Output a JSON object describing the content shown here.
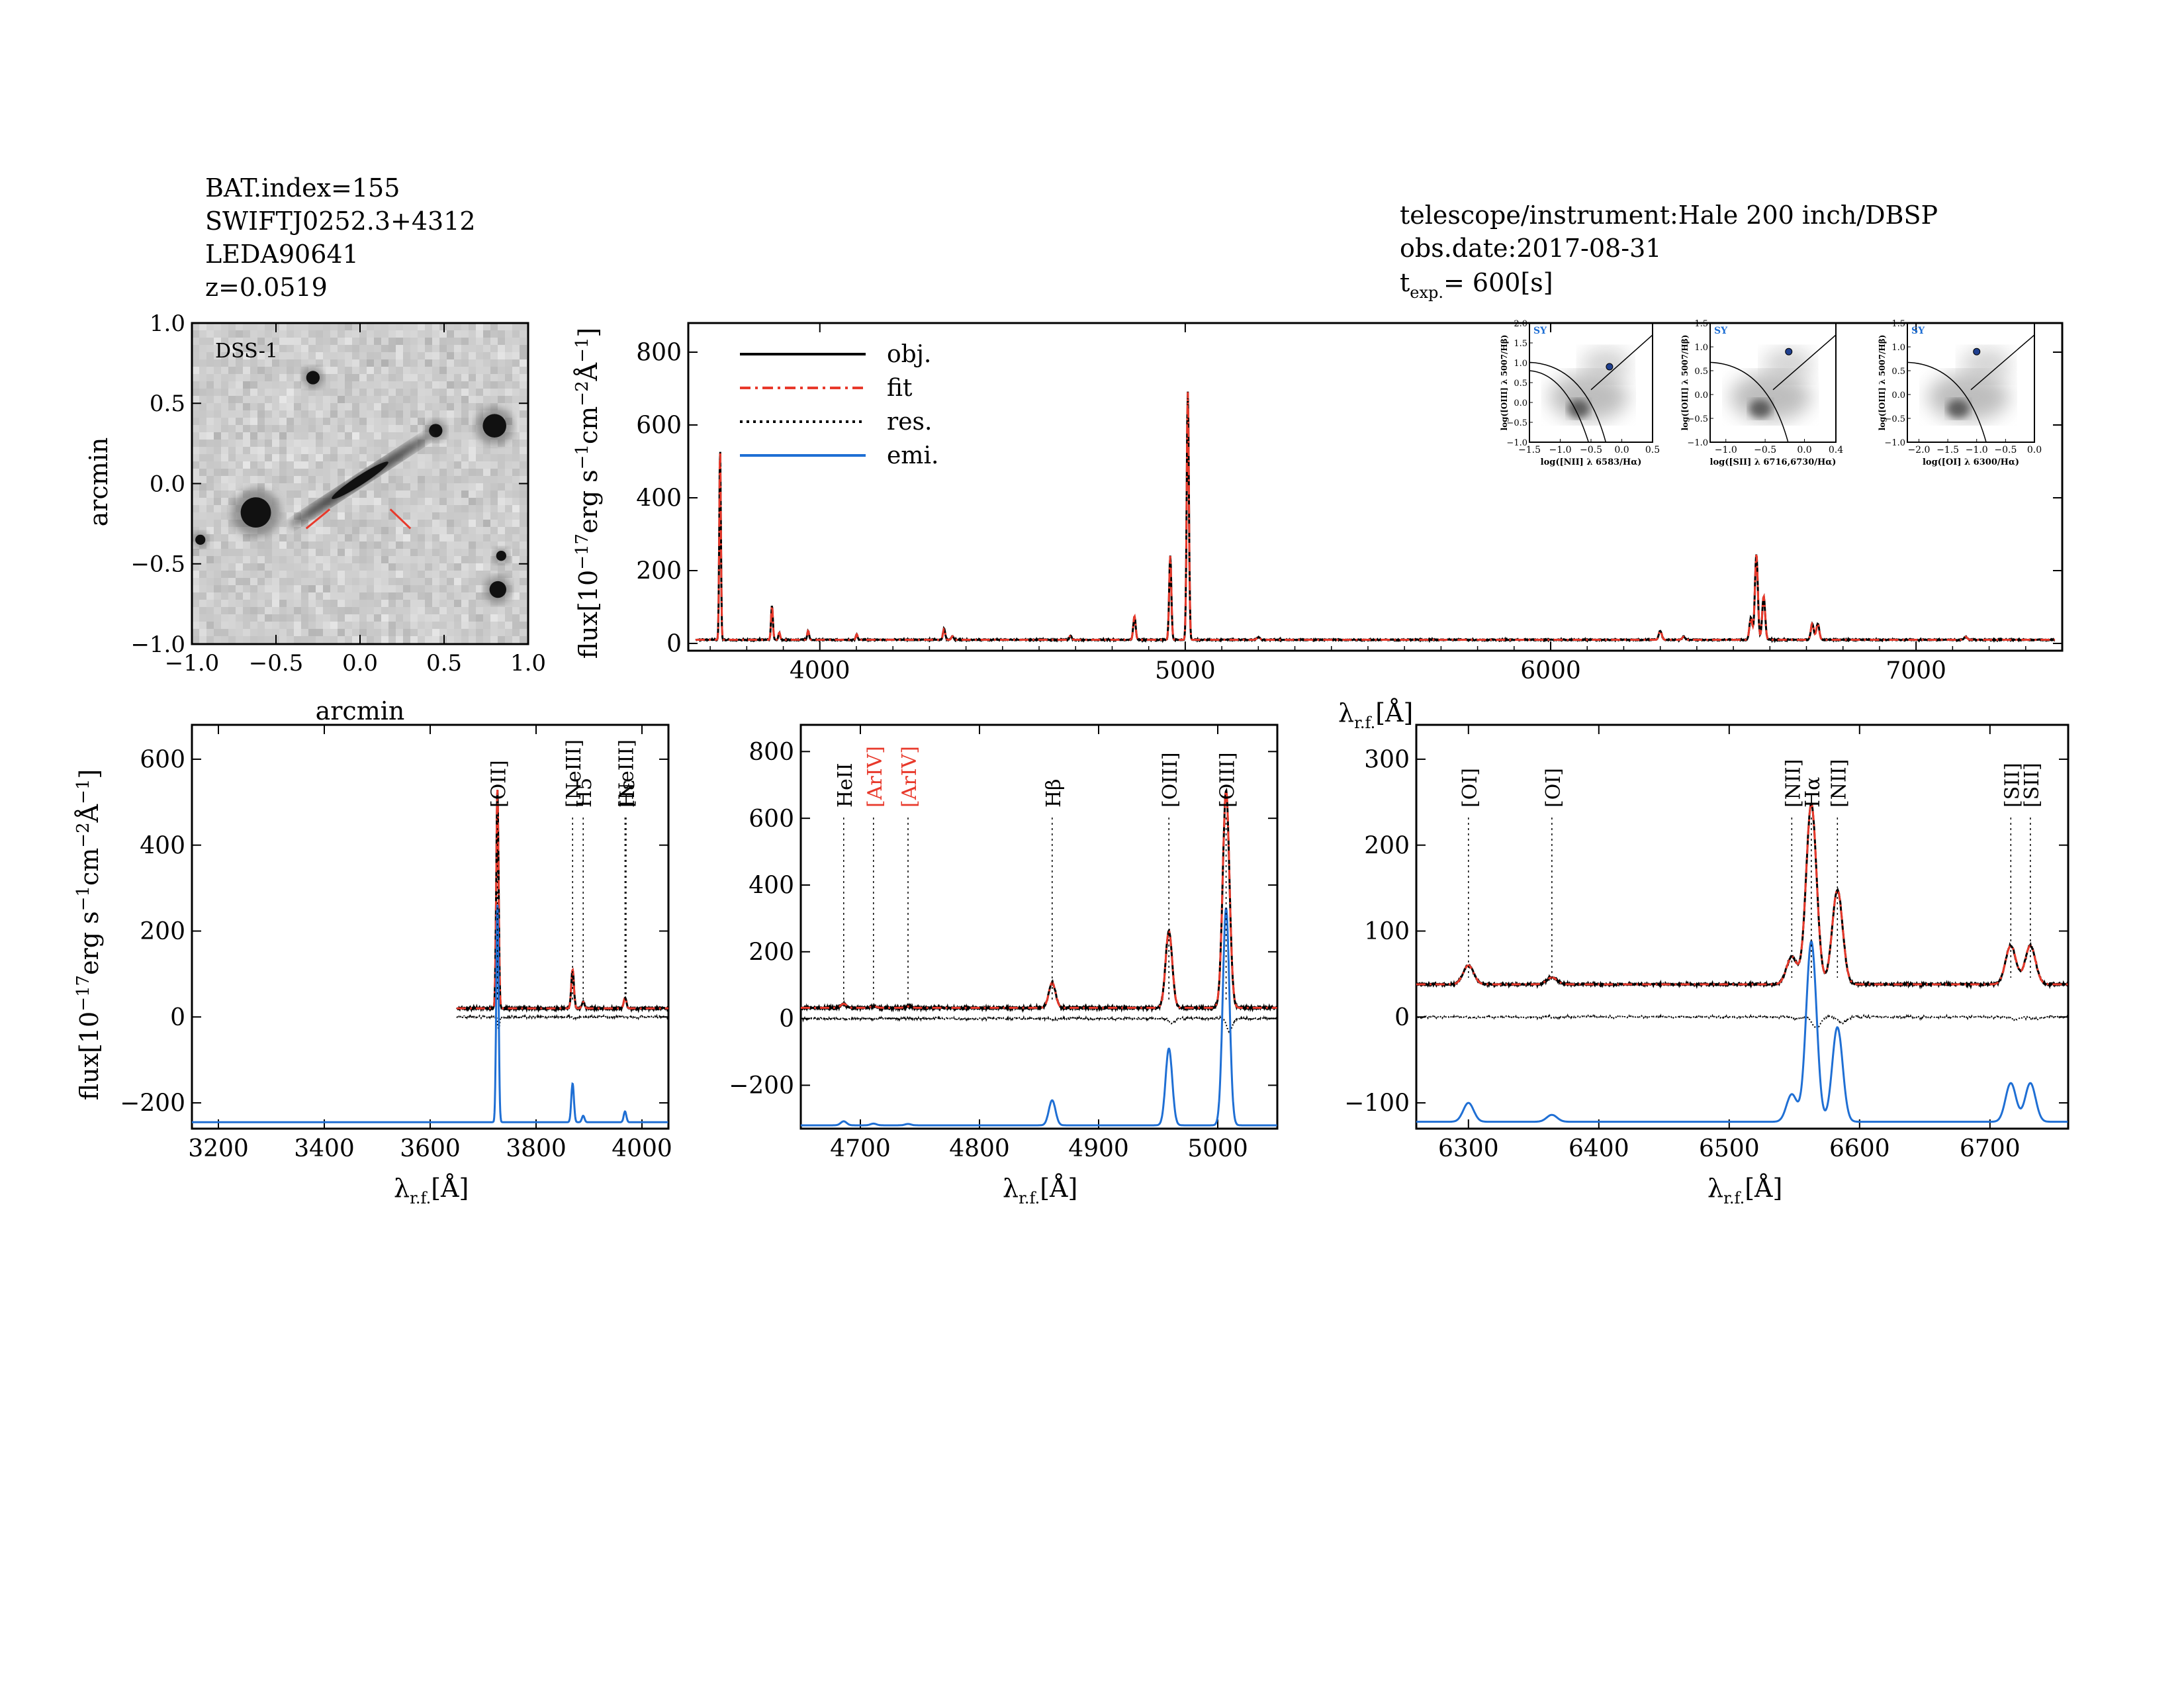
{
  "header": {
    "left": [
      "BAT.index=155",
      "SWIFTJ0252.3+4312",
      "LEDA90641",
      "z=0.0519"
    ],
    "right": [
      "telescope/instrument:Hale 200 inch/DBSP",
      "obs.date:2017-08-31"
    ],
    "texp_prefix": "t",
    "texp_sub": "exp.",
    "texp_value": "= 600[s]"
  },
  "colors": {
    "obj": "#000000",
    "fit": "#e8392b",
    "res": "#000000",
    "emi": "#1f6fd4",
    "red_label": "#e8392b"
  },
  "labels": {
    "flux": "flux[10",
    "flux_exp": "−17",
    "flux_unit": "erg s",
    "flux_unit_exp": "−1",
    "flux_cm": "cm",
    "flux_cm_exp": "−2",
    "flux_A_exp": "−1",
    "lambda": "λ",
    "lambda_sub": "r.f.",
    "lambda_unit": "[Å]"
  },
  "chart_data": [
    {
      "id": "dss",
      "type": "image",
      "title": "DSS-1",
      "xlabel": "arcmin",
      "ylabel": "arcmin",
      "xlim": [
        -1.0,
        1.0
      ],
      "ylim": [
        -1.0,
        1.0
      ],
      "xticks": [
        "−1.0",
        "−0.5",
        "0.0",
        "0.5",
        "1.0"
      ],
      "yticks": [
        "−1.0",
        "−0.5",
        "0.0",
        "0.5",
        "1.0"
      ],
      "sources": [
        {
          "x": -0.62,
          "y": -0.18,
          "size": 0.09
        },
        {
          "x": 0.8,
          "y": 0.36,
          "size": 0.07
        },
        {
          "x": -0.28,
          "y": 0.66,
          "size": 0.04
        },
        {
          "x": 0.45,
          "y": 0.33,
          "size": 0.04
        },
        {
          "x": 0.82,
          "y": -0.66,
          "size": 0.05
        },
        {
          "x": 0.84,
          "y": -0.45,
          "size": 0.03
        },
        {
          "x": -0.95,
          "y": -0.35,
          "size": 0.03
        }
      ],
      "galaxy": {
        "x": 0.0,
        "y": 0.02,
        "length": 1.0,
        "angle_deg": 33
      }
    },
    {
      "id": "full",
      "type": "line",
      "xlim": [
        3640,
        7400
      ],
      "ylim": [
        -20,
        880
      ],
      "xticks": [
        4000,
        5000,
        6000,
        7000
      ],
      "yticks": [
        0,
        200,
        400,
        600,
        800
      ],
      "legend_position": "top-left",
      "legend": [
        "obj.",
        "fit",
        "res.",
        "emi."
      ],
      "continuum": 10,
      "lines": [
        {
          "c": 3727,
          "a": 530,
          "s": 2.2
        },
        {
          "c": 3869,
          "a": 95,
          "s": 2.5
        },
        {
          "c": 3889,
          "a": 20,
          "s": 2.5
        },
        {
          "c": 3968,
          "a": 25,
          "s": 2.5
        },
        {
          "c": 4101,
          "a": 15,
          "s": 2.5
        },
        {
          "c": 4340,
          "a": 30,
          "s": 3
        },
        {
          "c": 4363,
          "a": 10,
          "s": 3
        },
        {
          "c": 4686,
          "a": 12,
          "s": 3
        },
        {
          "c": 4861,
          "a": 65,
          "s": 3.2
        },
        {
          "c": 4959,
          "a": 230,
          "s": 3
        },
        {
          "c": 5007,
          "a": 680,
          "s": 3
        },
        {
          "c": 5200,
          "a": 8,
          "s": 4
        },
        {
          "c": 6300,
          "a": 25,
          "s": 4
        },
        {
          "c": 6364,
          "a": 8,
          "s": 4
        },
        {
          "c": 6548,
          "a": 60,
          "s": 4
        },
        {
          "c": 6563,
          "a": 235,
          "s": 4
        },
        {
          "c": 6583,
          "a": 120,
          "s": 4
        },
        {
          "c": 6716,
          "a": 45,
          "s": 4
        },
        {
          "c": 6731,
          "a": 45,
          "s": 4
        },
        {
          "c": 7136,
          "a": 8,
          "s": 4
        }
      ],
      "insets": [
        {
          "label": "SY",
          "xlabel": "log([NII] λ 6583/Hα)",
          "ylabel": "log([OIII] λ 5007/Hβ)",
          "xlim": [
            -1.5,
            0.5
          ],
          "ylim": [
            -1.0,
            2.0
          ],
          "xticks": [
            "−1.5",
            "−1.0",
            "−0.5",
            "0.0",
            "0.5"
          ],
          "yticks": [
            "−1.0",
            "−0.5",
            "0.0",
            "0.5",
            "1.0",
            "1.5",
            "2.0"
          ],
          "point": [
            -0.2,
            0.9
          ]
        },
        {
          "label": "SY",
          "xlabel": "log([SII] λ 6716,6730/Hα)",
          "ylabel": "log([OIII] λ 5007/Hβ)",
          "xlim": [
            -1.2,
            0.4
          ],
          "ylim": [
            -1.0,
            1.5
          ],
          "xticks": [
            "−1.0",
            "−0.5",
            "0.0",
            "0.4"
          ],
          "yticks": [
            "−1.0",
            "−0.5",
            "0.0",
            "0.5",
            "1.0",
            "1.5"
          ],
          "point": [
            -0.2,
            0.9
          ]
        },
        {
          "label": "SY",
          "xlabel": "log([OI] λ 6300/Hα)",
          "ylabel": "log([OIII] λ 5007/Hβ)",
          "xlim": [
            -2.2,
            0.0
          ],
          "ylim": [
            -1.0,
            1.5
          ],
          "xticks": [
            "−2.0",
            "−1.5",
            "−1.0",
            "−0.5",
            "0.0"
          ],
          "yticks": [
            "−1.0",
            "−0.5",
            "0.0",
            "0.5",
            "1.0",
            "1.5"
          ],
          "point": [
            -1.0,
            0.9
          ]
        }
      ]
    },
    {
      "id": "z1",
      "type": "line",
      "xlim": [
        3150,
        4050
      ],
      "ylim": [
        -260,
        680
      ],
      "xticks": [
        3200,
        3400,
        3600,
        3800,
        4000
      ],
      "yticks": [
        -200,
        0,
        200,
        400,
        600
      ],
      "data_start": 3650,
      "continuum": 20,
      "emi_offset": -245,
      "lines": [
        {
          "c": 3727,
          "a": 510,
          "s": 2.2
        },
        {
          "c": 3869,
          "a": 90,
          "s": 2.5
        },
        {
          "c": 3889,
          "a": 15,
          "s": 2.5
        },
        {
          "c": 3968,
          "a": 25,
          "s": 2.5
        }
      ],
      "markers": [
        {
          "c": 3727,
          "text": "[OII]",
          "red": false
        },
        {
          "c": 3869,
          "text": "[NeIII]",
          "red": false
        },
        {
          "c": 3889,
          "text": "H5",
          "red": false
        },
        {
          "c": 3968,
          "text": "[NeIII]",
          "red": false
        },
        {
          "c": 3970,
          "text": "Hε",
          "red": false
        }
      ]
    },
    {
      "id": "z2",
      "type": "line",
      "xlim": [
        4650,
        5050
      ],
      "ylim": [
        -330,
        880
      ],
      "xticks": [
        4700,
        4800,
        4900,
        5000
      ],
      "yticks": [
        -200,
        0,
        200,
        400,
        600,
        800
      ],
      "data_start": 4650,
      "continuum": 32,
      "emi_offset": -320,
      "lines": [
        {
          "c": 4686,
          "a": 12,
          "s": 2.5
        },
        {
          "c": 4711,
          "a": 5,
          "s": 2.5
        },
        {
          "c": 4740,
          "a": 4,
          "s": 2.5
        },
        {
          "c": 4861,
          "a": 75,
          "s": 2.8
        },
        {
          "c": 4959,
          "a": 230,
          "s": 2.8
        },
        {
          "c": 5007,
          "a": 650,
          "s": 2.8
        }
      ],
      "markers": [
        {
          "c": 4686,
          "text": "HeII",
          "red": false
        },
        {
          "c": 4711,
          "text": "[ArIV]",
          "red": true
        },
        {
          "c": 4740,
          "text": "[ArIV]",
          "red": true
        },
        {
          "c": 4861,
          "text": "Hβ",
          "red": false
        },
        {
          "c": 4959,
          "text": "[OIII]",
          "red": false
        },
        {
          "c": 5007,
          "text": "[OIII]",
          "red": false
        }
      ]
    },
    {
      "id": "z3",
      "type": "line",
      "xlim": [
        6260,
        6760
      ],
      "ylim": [
        -130,
        340
      ],
      "xticks": [
        6300,
        6400,
        6500,
        6600,
        6700
      ],
      "yticks": [
        -100,
        0,
        100,
        200,
        300
      ],
      "data_start": 6260,
      "continuum": 38,
      "emi_offset": -122,
      "lines": [
        {
          "c": 6300,
          "a": 22,
          "s": 4
        },
        {
          "c": 6364,
          "a": 8,
          "s": 4
        },
        {
          "c": 6548,
          "a": 32,
          "s": 4
        },
        {
          "c": 6563,
          "a": 210,
          "s": 4
        },
        {
          "c": 6583,
          "a": 110,
          "s": 4
        },
        {
          "c": 6716,
          "a": 45,
          "s": 4
        },
        {
          "c": 6731,
          "a": 45,
          "s": 4
        }
      ],
      "markers": [
        {
          "c": 6300,
          "text": "[OI]",
          "red": false
        },
        {
          "c": 6364,
          "text": "[OI]",
          "red": false
        },
        {
          "c": 6548,
          "text": "[NII]",
          "red": false
        },
        {
          "c": 6563,
          "text": "Hα",
          "red": false
        },
        {
          "c": 6583,
          "text": "[NII]",
          "red": false
        },
        {
          "c": 6716,
          "text": "[SII]",
          "red": false
        },
        {
          "c": 6731,
          "text": "[SII]",
          "red": false
        }
      ]
    }
  ]
}
